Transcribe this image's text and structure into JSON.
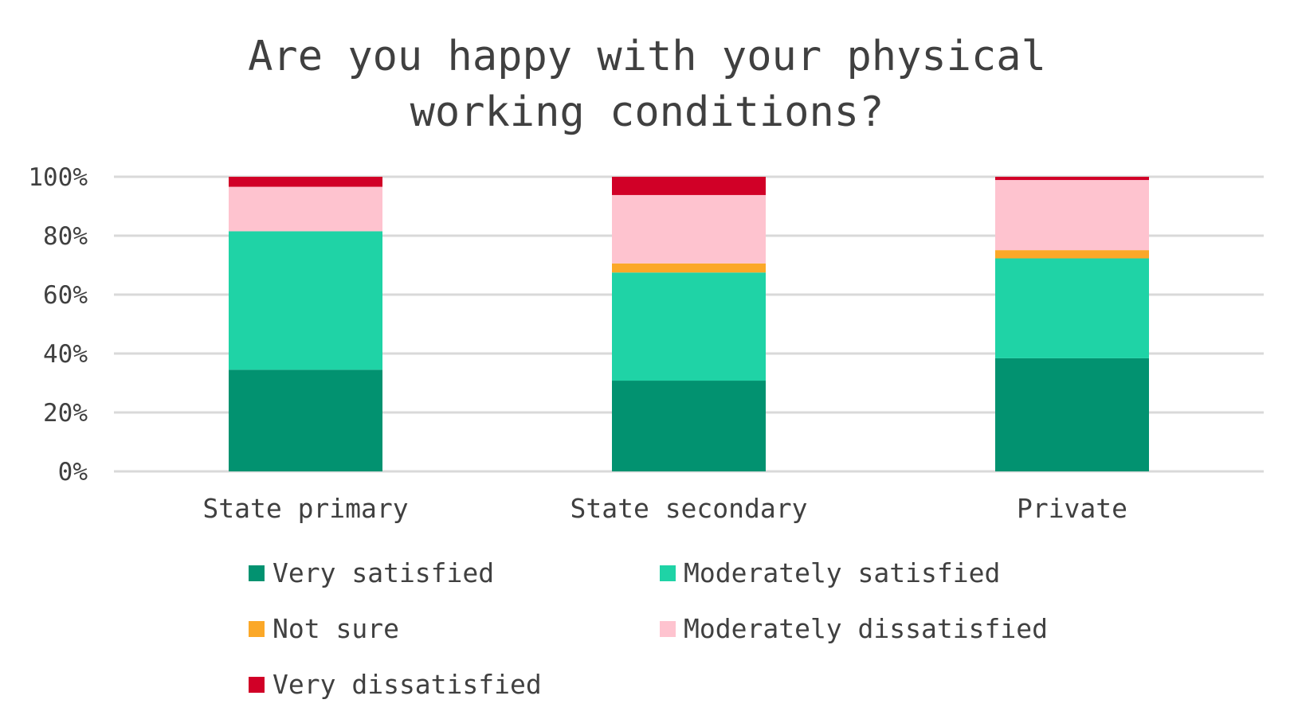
{
  "chart_data": {
    "type": "bar",
    "stacked": true,
    "title_lines": [
      "Are you happy with your physical",
      "working conditions?"
    ],
    "categories": [
      "State primary",
      "State secondary",
      "Private"
    ],
    "series": [
      {
        "name": "Very satisfied",
        "color": "#029270",
        "values": [
          34.5,
          30.8,
          38.4
        ]
      },
      {
        "name": "Moderately satisfied",
        "color": "#1fd3a6",
        "values": [
          47.0,
          36.7,
          33.9
        ]
      },
      {
        "name": "Not sure",
        "color": "#fba828",
        "values": [
          0,
          3.1,
          2.8
        ]
      },
      {
        "name": "Moderately dissatisfied",
        "color": "#fec3cf",
        "values": [
          15.1,
          23.2,
          23.8
        ]
      },
      {
        "name": "Very dissatisfied",
        "color": "#d10027",
        "values": [
          3.4,
          6.2,
          1.1
        ]
      }
    ],
    "yticks": [
      "0%",
      "20%",
      "40%",
      "60%",
      "80%",
      "100%"
    ],
    "ylim": [
      0,
      100
    ],
    "xlabel": "",
    "ylabel": "",
    "grid": true,
    "legend_position": "bottom"
  }
}
